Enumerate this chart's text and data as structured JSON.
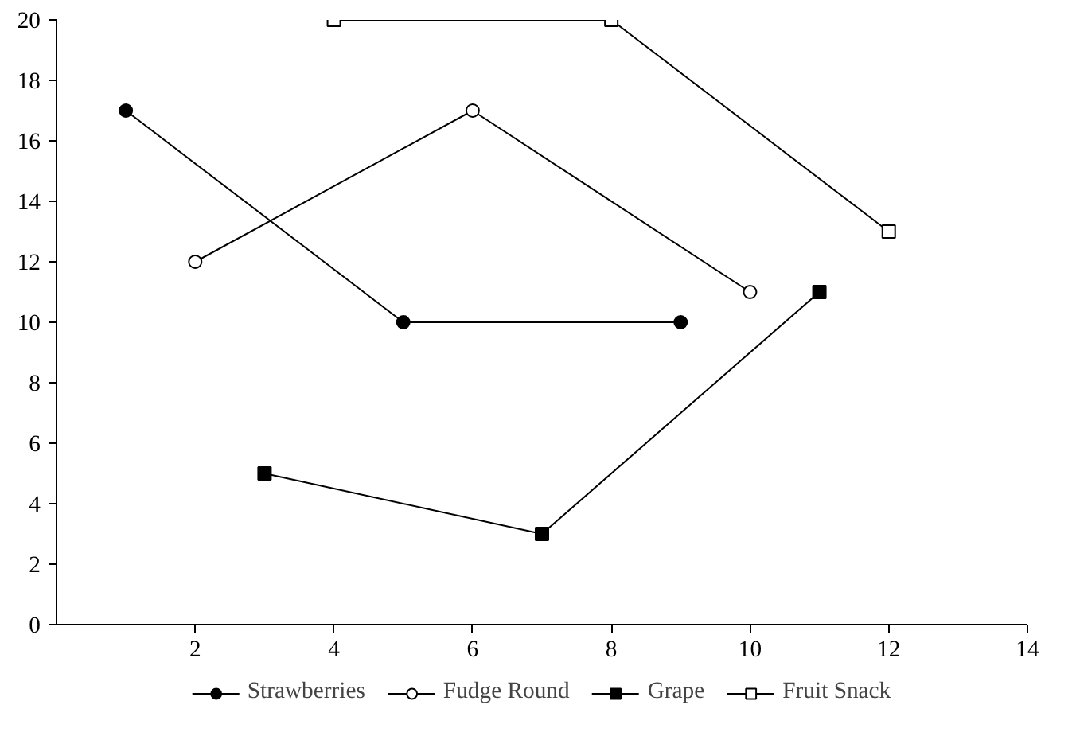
{
  "chart_data": {
    "type": "line",
    "xlim": [
      0,
      14
    ],
    "xticks": [
      2,
      4,
      6,
      8,
      10,
      12,
      14
    ],
    "ylim": [
      0,
      20
    ],
    "yticks": [
      0,
      2,
      4,
      6,
      8,
      10,
      12,
      14,
      16,
      18,
      20
    ],
    "grid": false,
    "legend": "bottom",
    "series": [
      {
        "name": "Strawberries",
        "color": "#000000",
        "marker": "circle",
        "x": [
          1,
          5,
          9
        ],
        "values": [
          17,
          10,
          10
        ]
      },
      {
        "name": "Fudge Round",
        "color": "#000000",
        "marker": "circle_open",
        "x": [
          2,
          6,
          10
        ],
        "values": [
          12,
          17,
          11
        ]
      },
      {
        "name": "Grape",
        "color": "#000000",
        "marker": "square",
        "x": [
          3,
          7,
          11
        ],
        "values": [
          5,
          3,
          11
        ]
      },
      {
        "name": "Fruit Snack",
        "color": "#000000",
        "marker": "square_open",
        "x": [
          4,
          8,
          12
        ],
        "values": [
          20,
          20,
          13
        ]
      }
    ]
  }
}
